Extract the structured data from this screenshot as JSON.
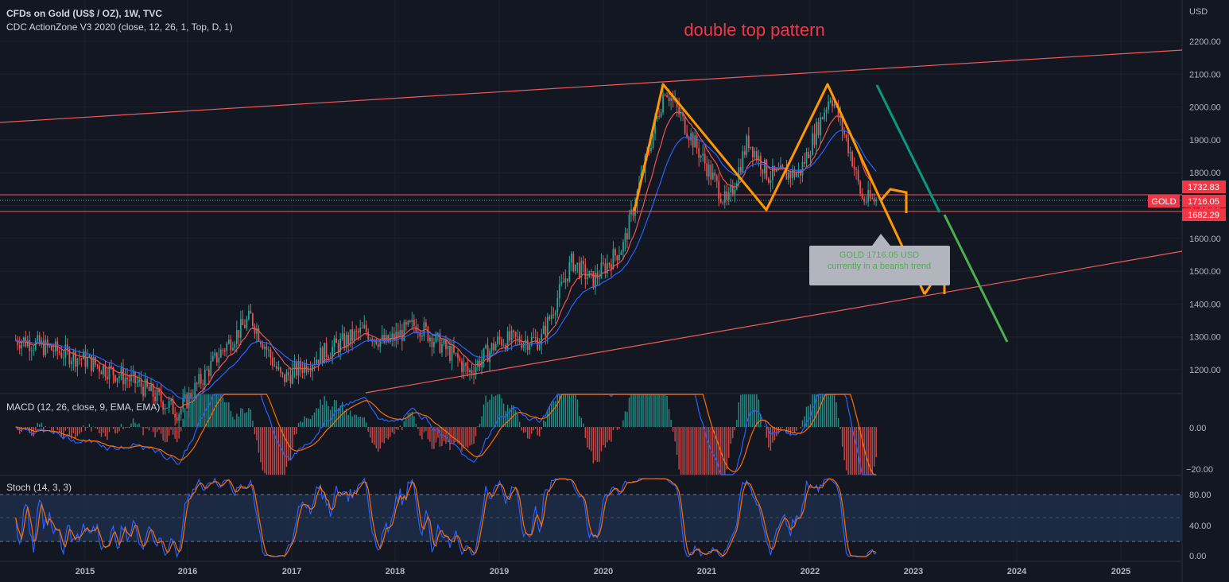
{
  "header": {
    "title": "CFDs on Gold (US$ / OZ), 1W, TVC",
    "indicator": "CDC ActionZone V3 2020 (close, 12, 26, 1, Top, D, 1)"
  },
  "annotation_title": "double top pattern",
  "callout": {
    "line1": "GOLD 1716.05 USD",
    "line2": "currently in a bearish trend"
  },
  "price_axis": {
    "currency": "USD",
    "ticks": [
      "2200.00",
      "2100.00",
      "2000.00",
      "1900.00",
      "1800.00",
      "1700.00",
      "1600.00",
      "1500.00",
      "1400.00",
      "1300.00",
      "1200.00"
    ],
    "tick_values": [
      2200,
      2100,
      2000,
      1900,
      1800,
      1700,
      1600,
      1500,
      1400,
      1300,
      1200
    ]
  },
  "price_badges": {
    "upper": "1732.83",
    "symbol": "GOLD",
    "last": "1716.05",
    "lower": "1682.29"
  },
  "macd": {
    "label": "MACD (12, 26, close, 9, EMA, EMA)",
    "ticks": [
      "0.00",
      "−20.00"
    ]
  },
  "stoch": {
    "label": "Stoch (14, 3, 3)",
    "ticks": [
      "80.00",
      "40.00",
      "0.00"
    ]
  },
  "time_axis": [
    "2015",
    "2016",
    "2017",
    "2018",
    "2019",
    "2020",
    "2021",
    "2022",
    "2023",
    "2024",
    "2025"
  ],
  "colors": {
    "background": "#131722",
    "bull": "#26a69a",
    "bear": "#ef5350",
    "pattern": "#ff9800",
    "trendline": "#f05a5a",
    "projection_teal": "#089981",
    "projection_green": "#4caf50",
    "badge_red": "#f23645",
    "callout_bg": "#b2b5be",
    "callout_text": "#4caf50",
    "annotation_red": "#f23645",
    "fast_line": "#2962ff",
    "slow_line": "#ff6d00"
  },
  "chart_data": {
    "type": "line",
    "title": "CFDs on Gold (US$ / OZ), 1W, TVC",
    "ylabel": "USD",
    "ylim": [
      1100,
      2250
    ],
    "x": [
      "2014.4",
      "2015.0",
      "2015.5",
      "2015.9",
      "2016.3",
      "2016.6",
      "2016.9",
      "2017.3",
      "2017.7",
      "2017.9",
      "2018.2",
      "2018.6",
      "2018.7",
      "2019.0",
      "2019.4",
      "2019.7",
      "2019.9",
      "2020.2",
      "2020.3",
      "2020.6",
      "2020.9",
      "2021.2",
      "2021.4",
      "2021.6",
      "2021.9",
      "2022.2",
      "2022.4",
      "2022.5",
      "2022.6"
    ],
    "series": [
      {
        "values": [
          1290,
          1230,
          1160,
          1070,
          1250,
          1360,
          1170,
          1250,
          1320,
          1280,
          1340,
          1230,
          1190,
          1290,
          1290,
          1530,
          1470,
          1580,
          1700,
          2060,
          1880,
          1700,
          1900,
          1790,
          1800,
          2040,
          1850,
          1720,
          1716
        ]
      }
    ],
    "double_top": {
      "points_x": [
        "2020.1",
        "2020.6",
        "2021.6",
        "2022.2",
        "2022.6",
        "2022.8",
        "2023.1"
      ],
      "points_y": [
        1680,
        2070,
        1680,
        2070,
        1715,
        1680,
        1430
      ]
    },
    "resistance_line": {
      "x": [
        "2014.3",
        "2025.6"
      ],
      "y": [
        1955,
        2170
      ]
    },
    "support_line": {
      "x": [
        "2017.7",
        "2025.6"
      ],
      "y": [
        1130,
        1560
      ]
    },
    "horizontal_levels": [
      1732.83,
      1716.05,
      1682.29
    ],
    "time_ticks": [
      "2015",
      "2016",
      "2017",
      "2018",
      "2019",
      "2020",
      "2021",
      "2022",
      "2023",
      "2024",
      "2025"
    ],
    "macd_ylim": [
      -25,
      22
    ],
    "stoch_ylim": [
      0,
      100
    ],
    "stoch_band": [
      20,
      80
    ]
  }
}
